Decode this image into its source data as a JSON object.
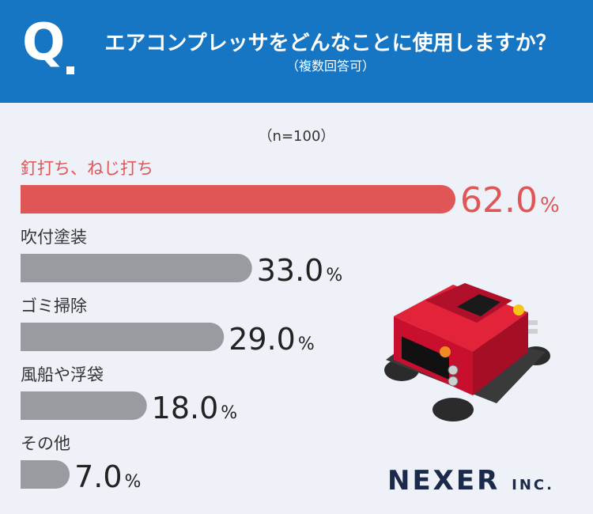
{
  "header": {
    "q_label": "Q",
    "question": "エアコンプレッサをどんなことに使用しますか？",
    "note": "（複数回答可）"
  },
  "sample_size": "（n=100）",
  "chart_data": {
    "type": "bar",
    "orientation": "horizontal",
    "categories": [
      "釘打ち、ねじ打ち",
      "吹付塗装",
      "ゴミ掃除",
      "風船や浮袋",
      "その他"
    ],
    "values": [
      62.0,
      33.0,
      29.0,
      18.0,
      7.0
    ],
    "value_labels": [
      "62.0",
      "33.0",
      "29.0",
      "18.0",
      "7.0"
    ],
    "unit": "%",
    "xlim": [
      0,
      62
    ],
    "colors": {
      "highlight": "#e05555",
      "default": "#9a9ba0"
    }
  },
  "logo": {
    "main": "NEXER",
    "suffix": "INC."
  }
}
